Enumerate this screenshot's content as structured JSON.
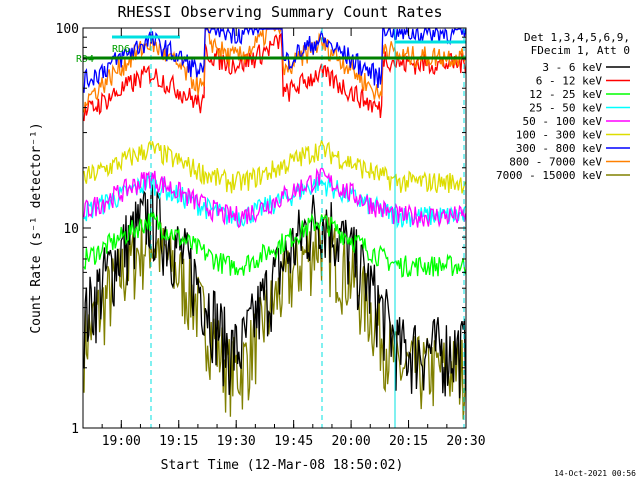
{
  "chart_data": {
    "type": "line",
    "title": "RHESSI Observing Summary Count Rates",
    "xlabel": "Start Time (12-Mar-08 18:50:02)",
    "ylabel": "Count Rate (s⁻¹ detector⁻¹)",
    "yscale": "log",
    "xlim": [
      "18:50",
      "20:30"
    ],
    "ylim": [
      1,
      100
    ],
    "x_ticks": [
      "19:00",
      "19:15",
      "19:30",
      "19:45",
      "20:00",
      "20:15",
      "20:30"
    ],
    "y_ticks": [
      "1",
      "10",
      "100"
    ],
    "legend_position": "right",
    "legend_header": [
      "Det 1,3,4,5,6,9,",
      "FDecim 1, Att 0"
    ],
    "footer_date": "14-Oct-2021 00:56",
    "annotations": [
      {
        "text": "RD6",
        "color": "#00a000"
      },
      {
        "text": "RD4",
        "color": "#00a000"
      }
    ],
    "series": [
      {
        "name": "3 - 6 keV",
        "color": "#000000",
        "approx_peak": 12,
        "approx_floor": 2.5
      },
      {
        "name": "6 - 12 keV",
        "color": "#ff0000",
        "approx_peak": 60,
        "approx_floor": 35
      },
      {
        "name": "12 - 25 keV",
        "color": "#00ff00",
        "approx_peak": 11,
        "approx_floor": 6.5
      },
      {
        "name": "25 - 50 keV",
        "color": "#00ffff",
        "approx_peak": 17,
        "approx_floor": 11.5
      },
      {
        "name": "50 - 100 keV",
        "color": "#ff00ff",
        "approx_peak": 18,
        "approx_floor": 11.5
      },
      {
        "name": "100 - 300 keV",
        "color": "#dddd00",
        "approx_peak": 25,
        "approx_floor": 17
      },
      {
        "name": "300 - 800 keV",
        "color": "#0000ff",
        "approx_peak": 88,
        "approx_floor": 50
      },
      {
        "name": "800 - 7000 keV",
        "color": "#ff8000",
        "approx_peak": 85,
        "approx_floor": 38
      },
      {
        "name": "7000 - 15000 keV",
        "color": "#808000",
        "approx_peak": 9,
        "approx_floor": 2
      }
    ]
  }
}
